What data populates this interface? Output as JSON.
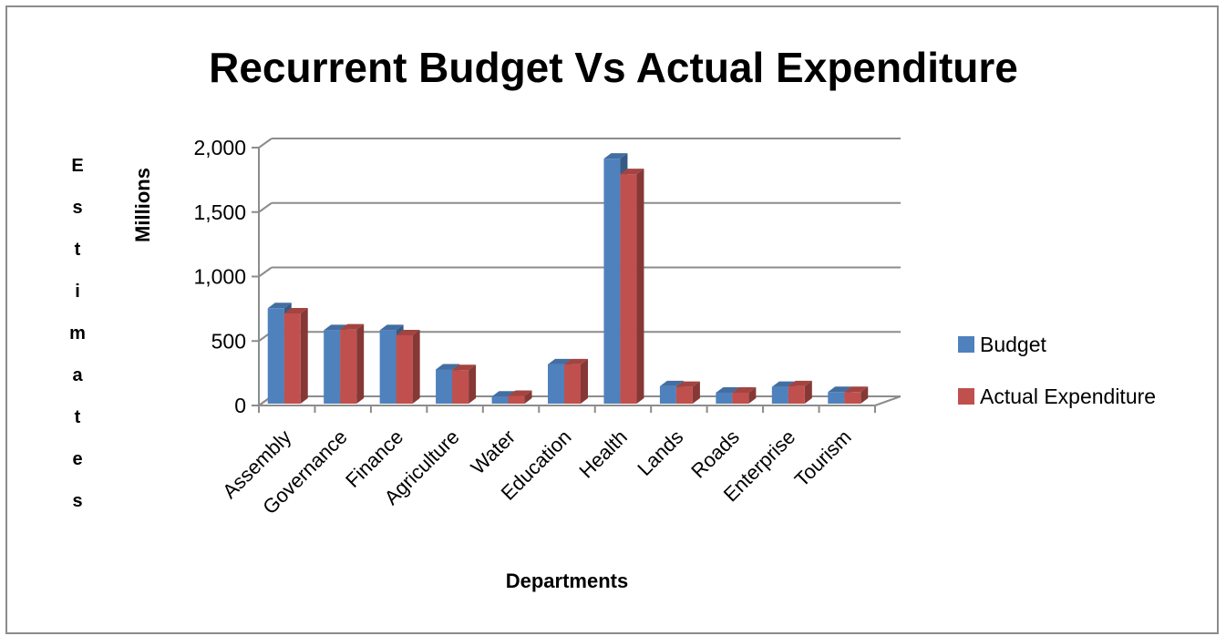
{
  "chart_data": {
    "type": "bar",
    "title": "Recurrent Budget Vs Actual Expenditure",
    "xlabel": "Departments",
    "ylabel": "Millions",
    "side_label": [
      "E",
      "s",
      "t",
      "i",
      "m",
      "a",
      "t",
      "e",
      "s"
    ],
    "categories": [
      "Assembly",
      "Governance",
      "Finance",
      "Agriculture",
      "Water",
      "Education",
      "Health",
      "Lands",
      "Roads",
      "Enterprise",
      "Tourism"
    ],
    "series": [
      {
        "name": "Budget",
        "color": "#4f81bd",
        "values": [
          740,
          570,
          570,
          265,
          55,
          305,
          1900,
          135,
          85,
          130,
          90
        ]
      },
      {
        "name": "Actual Expenditure",
        "color": "#c0504d",
        "values": [
          700,
          575,
          530,
          260,
          60,
          305,
          1780,
          130,
          85,
          135,
          90
        ]
      }
    ],
    "ylim": [
      0,
      2000
    ],
    "yticks": [
      0,
      500,
      1000,
      1500,
      2000
    ],
    "ytick_labels": [
      "0",
      "500",
      "1,000",
      "1,500",
      "2,000"
    ],
    "grid": true,
    "legend": "right",
    "style": "3d-clustered-column"
  }
}
